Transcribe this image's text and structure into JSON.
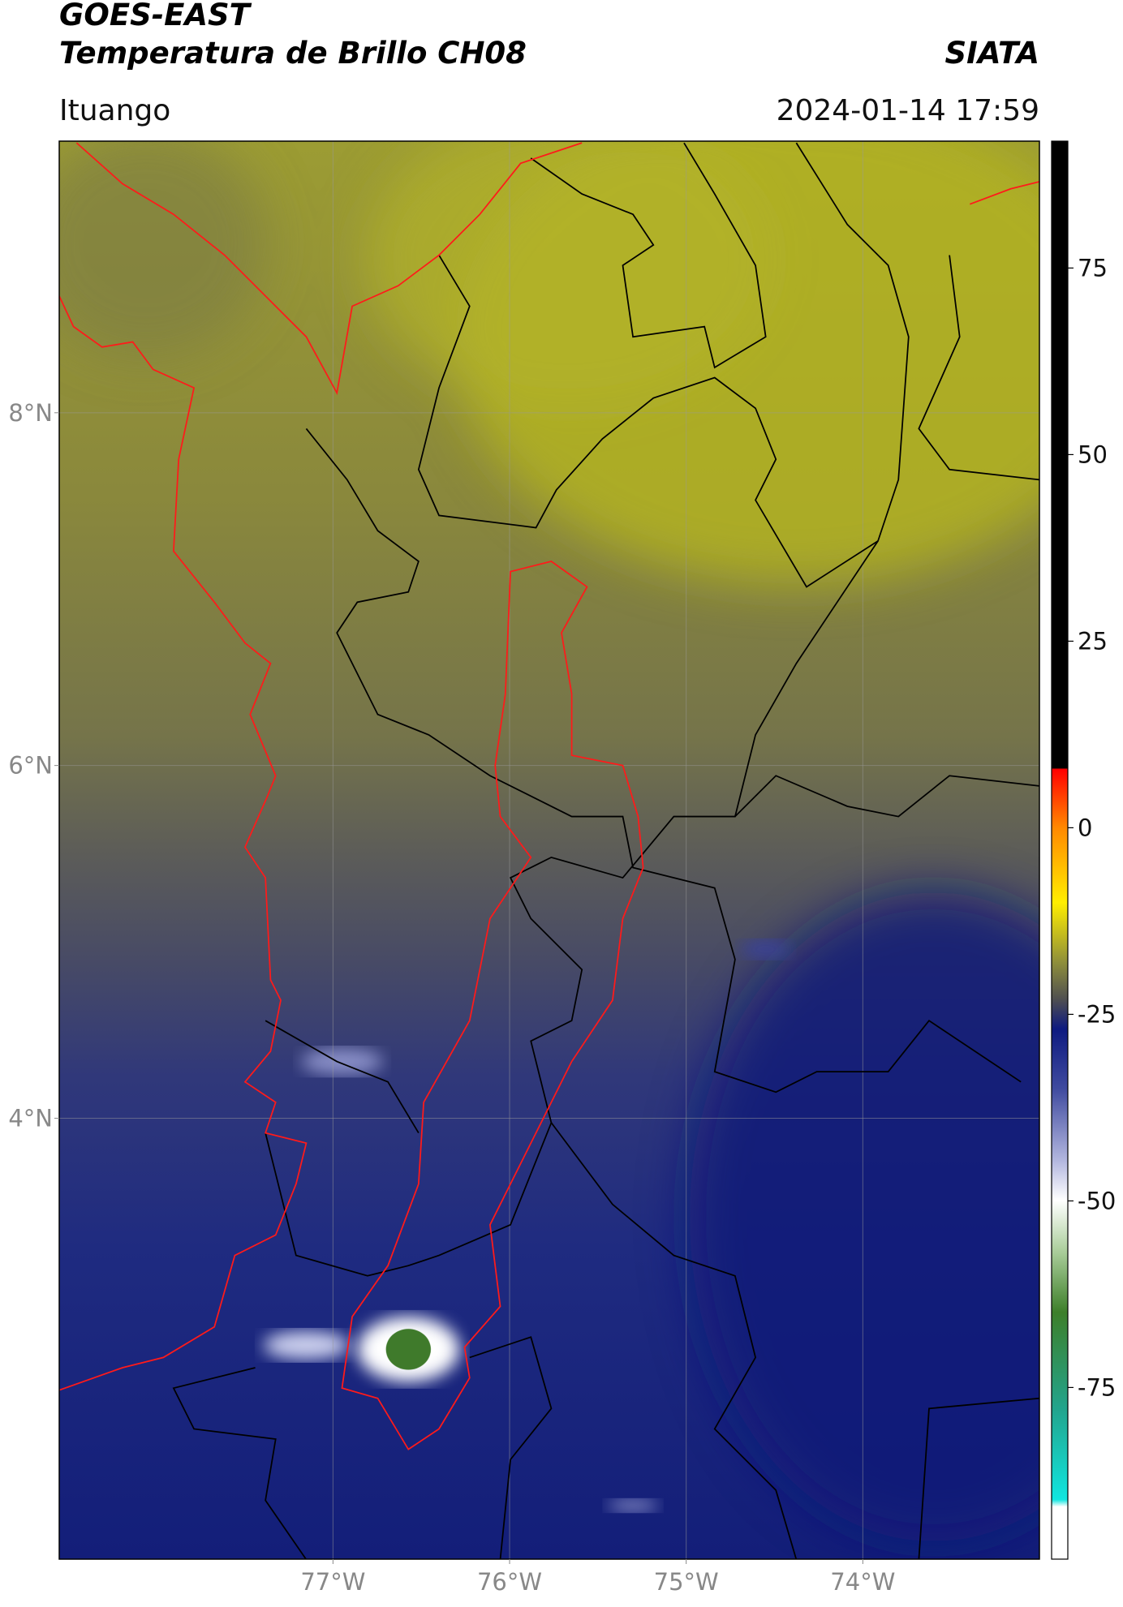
{
  "header": {
    "title": "GOES-EAST",
    "subtitle": "Temperatura de Brillo CH08",
    "source": "SIATA",
    "location": "Ituango",
    "timestamp": "2024-01-14 17:59"
  },
  "map": {
    "xlim": [
      -78.55,
      -73.0
    ],
    "ylim": [
      1.5,
      9.54
    ],
    "xticks": [
      {
        "value": -77,
        "label": "77°W"
      },
      {
        "value": -76,
        "label": "76°W"
      },
      {
        "value": -75,
        "label": "75°W"
      },
      {
        "value": -74,
        "label": "74°W"
      }
    ],
    "yticks": [
      {
        "value": 8,
        "label": "8°N"
      },
      {
        "value": 6,
        "label": "6°N"
      },
      {
        "value": 4,
        "label": "4°N"
      }
    ],
    "grid": true
  },
  "colorbar": {
    "lim": [
      -98,
      92
    ],
    "ticks": [
      75,
      50,
      25,
      0,
      -25,
      -50,
      -75
    ]
  }
}
